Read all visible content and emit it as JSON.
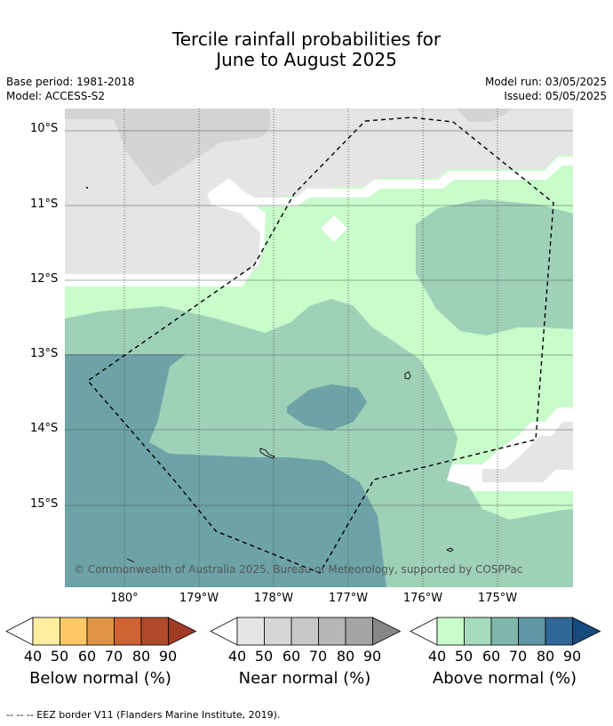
{
  "title": {
    "line1": "Tercile rainfall probabilities for",
    "line2": "June to August 2025"
  },
  "meta": {
    "base_period": "Base period: 1981-2018",
    "model": "Model: ACCESS-S2",
    "model_run": "Model run: 03/05/2025",
    "issued": "Issued: 05/05/2025"
  },
  "axes": {
    "y_ticks": [
      "10°S",
      "11°S",
      "12°S",
      "13°S",
      "14°S",
      "15°S"
    ],
    "x_ticks": [
      "180°",
      "179°W",
      "178°W",
      "177°W",
      "176°W",
      "175°W"
    ]
  },
  "copyright": "© Commonwealth of Australia 2025, Bureau of Meteorology, supported by COSPPac",
  "colorbars": [
    {
      "title": "Below normal (%)",
      "labels": [
        "40",
        "50",
        "60",
        "70",
        "80",
        "90"
      ],
      "colors": [
        "#ffeda0",
        "#fec965",
        "#e09445",
        "#ce6232",
        "#b04a28",
        "#a03a24"
      ]
    },
    {
      "title": "Near normal (%)",
      "labels": [
        "40",
        "50",
        "60",
        "70",
        "80",
        "90"
      ],
      "colors": [
        "#e5e5e5",
        "#d6d6d6",
        "#c8c8c8",
        "#b7b7b7",
        "#a4a4a4",
        "#868686"
      ]
    },
    {
      "title": "Above normal (%)",
      "labels": [
        "40",
        "50",
        "60",
        "70",
        "80",
        "90"
      ],
      "colors": [
        "#c8fcca",
        "#a6dbbe",
        "#7fb7ad",
        "#5e97a3",
        "#2f6898",
        "#174a7e"
      ]
    }
  ],
  "footer": "--  --  -- EEZ border V11 (Flanders Marine Institute, 2019).",
  "map_colors": {
    "near_40": "#e5e5e5",
    "near_50": "#d4d4d4",
    "above_40": "#c8fcca",
    "above_50": "#9fd1b9",
    "above_60": "#6da3a6"
  }
}
